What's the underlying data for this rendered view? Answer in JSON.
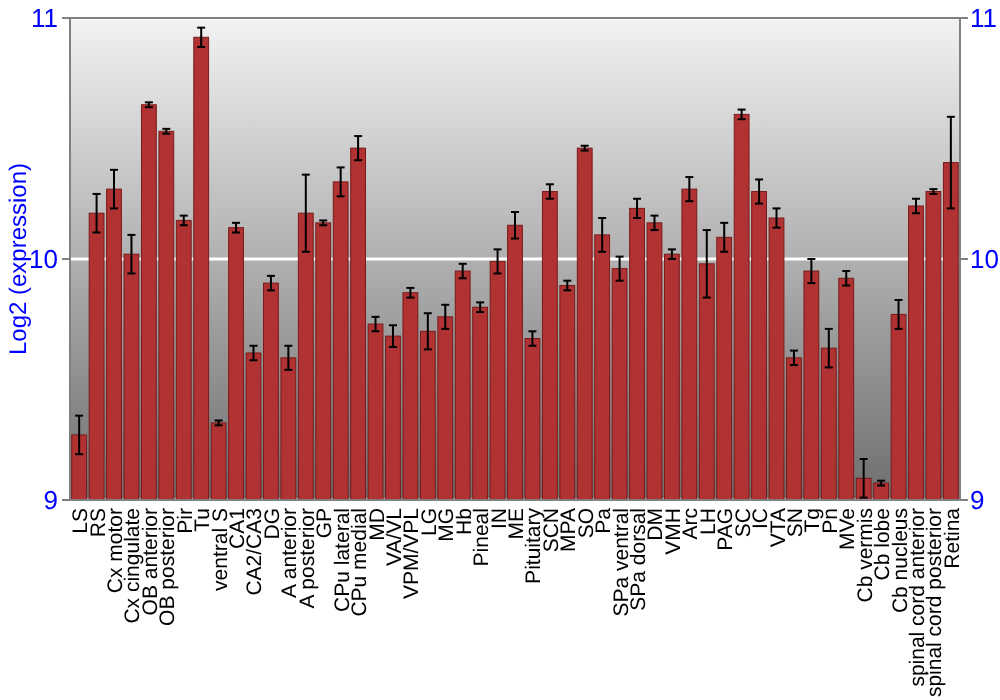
{
  "chart_data": {
    "type": "bar",
    "ylabel": "Log2 (expression)",
    "categories": [
      "LS",
      "RS",
      "Cx motor",
      "Cx cingulate",
      "OB anterior",
      "OB posterior",
      "Pir",
      "Tu",
      "ventral S",
      "CA1",
      "CA2/CA3",
      "DG",
      "A anterior",
      "A posterior",
      "GP",
      "CPu lateral",
      "CPu medial",
      "MD",
      "VA/VL",
      "VPM/VPL",
      "LG",
      "MG",
      "Hb",
      "Pineal",
      "IN",
      "ME",
      "Pituitary",
      "SCN",
      "MPA",
      "SO",
      "Pa",
      "SPa ventral",
      "SPa dorsal",
      "DM",
      "VMH",
      "Arc",
      "LH",
      "PAG",
      "SC",
      "IC",
      "VTA",
      "SN",
      "Tg",
      "Pn",
      "MVe",
      "Cb vermis",
      "Cb lobe",
      "Cb nucleus",
      "spinal cord anterior",
      "spinal cord posterior",
      "Retina"
    ],
    "values": [
      9.27,
      10.19,
      10.29,
      10.02,
      10.64,
      10.53,
      10.16,
      10.92,
      9.32,
      10.13,
      9.61,
      9.9,
      9.59,
      10.19,
      10.15,
      10.32,
      10.46,
      9.73,
      9.68,
      9.86,
      9.7,
      9.76,
      9.95,
      9.8,
      9.99,
      10.14,
      9.67,
      10.28,
      9.89,
      10.46,
      10.1,
      9.96,
      10.21,
      10.15,
      10.02,
      10.29,
      9.98,
      10.09,
      10.6,
      10.28,
      10.17,
      9.59,
      9.95,
      9.63,
      9.92,
      9.09,
      9.07,
      9.77,
      10.22,
      10.28,
      10.4
    ],
    "errors": [
      0.08,
      0.08,
      0.08,
      0.08,
      0.01,
      0.01,
      0.02,
      0.04,
      0.01,
      0.02,
      0.03,
      0.03,
      0.05,
      0.16,
      0.01,
      0.06,
      0.05,
      0.03,
      0.045,
      0.02,
      0.075,
      0.05,
      0.03,
      0.02,
      0.05,
      0.055,
      0.03,
      0.03,
      0.02,
      0.01,
      0.07,
      0.05,
      0.04,
      0.03,
      0.02,
      0.05,
      0.14,
      0.06,
      0.02,
      0.05,
      0.04,
      0.03,
      0.05,
      0.08,
      0.03,
      0.08,
      0.01,
      0.06,
      0.03,
      0.01,
      0.19
    ],
    "color": "#b03232",
    "ylim": [
      9,
      11
    ],
    "yticks": [
      9,
      10,
      11
    ],
    "y2lim": [
      9,
      11
    ],
    "y2ticks": [
      9,
      10,
      11
    ],
    "grid": "y"
  }
}
